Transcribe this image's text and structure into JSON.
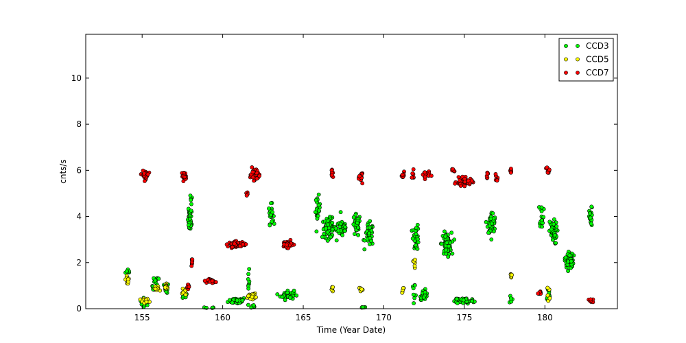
{
  "chart_data": {
    "type": "scatter",
    "title": "",
    "xlabel": "Time (Year Date)",
    "ylabel": "cnts/s",
    "xlim": [
      151.5,
      184.5
    ],
    "ylim": [
      0,
      11.9
    ],
    "xticks": [
      155,
      160,
      165,
      170,
      175,
      180
    ],
    "yticks": [
      0,
      2,
      4,
      6,
      8,
      10
    ],
    "grid": false,
    "legend_position": "top-right",
    "series": [
      {
        "name": "CCD3",
        "color": "#00ff00",
        "clusters": [
          {
            "x": 154.15,
            "y": 1.6,
            "xs": 0.15,
            "ys": 0.1,
            "n": 8
          },
          {
            "x": 155.15,
            "y": 0.3,
            "xs": 0.25,
            "ys": 0.12,
            "n": 22
          },
          {
            "x": 155.85,
            "y": 1.0,
            "xs": 0.18,
            "ys": 0.3,
            "n": 18
          },
          {
            "x": 156.5,
            "y": 0.9,
            "xs": 0.12,
            "ys": 0.15,
            "n": 12
          },
          {
            "x": 157.6,
            "y": 0.6,
            "xs": 0.15,
            "ys": 0.15,
            "n": 14
          },
          {
            "x": 157.95,
            "y": 3.8,
            "xs": 0.1,
            "ys": 0.35,
            "n": 30
          },
          {
            "x": 158.05,
            "y": 4.6,
            "xs": 0.06,
            "ys": 0.4,
            "n": 8
          },
          {
            "x": 159.2,
            "y": 0.03,
            "xs": 0.25,
            "ys": 0.03,
            "n": 14
          },
          {
            "x": 160.9,
            "y": 0.35,
            "xs": 0.45,
            "ys": 0.1,
            "n": 40
          },
          {
            "x": 161.6,
            "y": 1.2,
            "xs": 0.05,
            "ys": 0.5,
            "n": 8
          },
          {
            "x": 161.9,
            "y": 0.1,
            "xs": 0.15,
            "ys": 0.08,
            "n": 10
          },
          {
            "x": 163.0,
            "y": 4.1,
            "xs": 0.12,
            "ys": 0.3,
            "n": 22
          },
          {
            "x": 164.0,
            "y": 0.6,
            "xs": 0.35,
            "ys": 0.15,
            "n": 40
          },
          {
            "x": 165.9,
            "y": 4.3,
            "xs": 0.12,
            "ys": 0.4,
            "n": 20
          },
          {
            "x": 166.6,
            "y": 3.5,
            "xs": 0.35,
            "ys": 0.3,
            "n": 70
          },
          {
            "x": 167.4,
            "y": 3.5,
            "xs": 0.3,
            "ys": 0.3,
            "n": 40
          },
          {
            "x": 168.3,
            "y": 3.6,
            "xs": 0.2,
            "ys": 0.35,
            "n": 35
          },
          {
            "x": 169.1,
            "y": 3.2,
            "xs": 0.22,
            "ys": 0.35,
            "n": 40
          },
          {
            "x": 168.7,
            "y": 0.05,
            "xs": 0.1,
            "ys": 0.03,
            "n": 6
          },
          {
            "x": 172.0,
            "y": 3.1,
            "xs": 0.15,
            "ys": 0.4,
            "n": 30
          },
          {
            "x": 172.5,
            "y": 0.6,
            "xs": 0.2,
            "ys": 0.15,
            "n": 30
          },
          {
            "x": 171.9,
            "y": 0.8,
            "xs": 0.12,
            "ys": 0.2,
            "n": 8
          },
          {
            "x": 173.9,
            "y": 2.8,
            "xs": 0.25,
            "ys": 0.35,
            "n": 70
          },
          {
            "x": 175.0,
            "y": 0.35,
            "xs": 0.5,
            "ys": 0.1,
            "n": 55
          },
          {
            "x": 176.7,
            "y": 3.7,
            "xs": 0.2,
            "ys": 0.35,
            "n": 55
          },
          {
            "x": 177.9,
            "y": 0.4,
            "xs": 0.06,
            "ys": 0.15,
            "n": 6
          },
          {
            "x": 179.8,
            "y": 4.1,
            "xs": 0.1,
            "ys": 0.4,
            "n": 18
          },
          {
            "x": 180.2,
            "y": 0.6,
            "xs": 0.1,
            "ys": 0.3,
            "n": 14
          },
          {
            "x": 180.5,
            "y": 3.3,
            "xs": 0.2,
            "ys": 0.35,
            "n": 50
          },
          {
            "x": 181.5,
            "y": 2.1,
            "xs": 0.22,
            "ys": 0.3,
            "n": 45
          },
          {
            "x": 182.85,
            "y": 3.9,
            "xs": 0.08,
            "ys": 0.35,
            "n": 22
          }
        ]
      },
      {
        "name": "CCD5",
        "color": "#ffff00",
        "clusters": [
          {
            "x": 154.1,
            "y": 1.25,
            "xs": 0.1,
            "ys": 0.15,
            "n": 12
          },
          {
            "x": 155.2,
            "y": 0.3,
            "xs": 0.25,
            "ys": 0.1,
            "n": 14
          },
          {
            "x": 155.9,
            "y": 0.85,
            "xs": 0.15,
            "ys": 0.1,
            "n": 12
          },
          {
            "x": 156.5,
            "y": 1.0,
            "xs": 0.12,
            "ys": 0.12,
            "n": 12
          },
          {
            "x": 157.6,
            "y": 0.75,
            "xs": 0.12,
            "ys": 0.15,
            "n": 8
          },
          {
            "x": 161.8,
            "y": 0.55,
            "xs": 0.2,
            "ys": 0.08,
            "n": 18
          },
          {
            "x": 166.8,
            "y": 0.85,
            "xs": 0.06,
            "ys": 0.12,
            "n": 6
          },
          {
            "x": 168.6,
            "y": 0.85,
            "xs": 0.1,
            "ys": 0.06,
            "n": 8
          },
          {
            "x": 171.2,
            "y": 0.8,
            "xs": 0.06,
            "ys": 0.08,
            "n": 5
          },
          {
            "x": 171.9,
            "y": 2.0,
            "xs": 0.06,
            "ys": 0.2,
            "n": 6
          },
          {
            "x": 177.9,
            "y": 1.45,
            "xs": 0.05,
            "ys": 0.08,
            "n": 6
          },
          {
            "x": 180.2,
            "y": 0.6,
            "xs": 0.08,
            "ys": 0.2,
            "n": 5
          }
        ]
      },
      {
        "name": "CCD7",
        "color": "#ff0000",
        "clusters": [
          {
            "x": 155.2,
            "y": 5.8,
            "xs": 0.15,
            "ys": 0.12,
            "n": 45
          },
          {
            "x": 157.6,
            "y": 5.75,
            "xs": 0.12,
            "ys": 0.12,
            "n": 22
          },
          {
            "x": 157.9,
            "y": 0.95,
            "xs": 0.08,
            "ys": 0.1,
            "n": 10
          },
          {
            "x": 158.1,
            "y": 2.05,
            "xs": 0.04,
            "ys": 0.1,
            "n": 8
          },
          {
            "x": 159.3,
            "y": 1.2,
            "xs": 0.18,
            "ys": 0.06,
            "n": 30
          },
          {
            "x": 160.9,
            "y": 2.8,
            "xs": 0.45,
            "ys": 0.08,
            "n": 70
          },
          {
            "x": 161.5,
            "y": 4.95,
            "xs": 0.04,
            "ys": 0.1,
            "n": 6
          },
          {
            "x": 161.95,
            "y": 5.85,
            "xs": 0.2,
            "ys": 0.18,
            "n": 45
          },
          {
            "x": 164.0,
            "y": 2.8,
            "xs": 0.3,
            "ys": 0.1,
            "n": 45
          },
          {
            "x": 166.8,
            "y": 5.8,
            "xs": 0.05,
            "ys": 0.12,
            "n": 8
          },
          {
            "x": 168.6,
            "y": 5.7,
            "xs": 0.1,
            "ys": 0.15,
            "n": 18
          },
          {
            "x": 171.2,
            "y": 5.75,
            "xs": 0.06,
            "ys": 0.12,
            "n": 12
          },
          {
            "x": 171.8,
            "y": 5.8,
            "xs": 0.08,
            "ys": 0.12,
            "n": 8
          },
          {
            "x": 172.6,
            "y": 5.8,
            "xs": 0.2,
            "ys": 0.12,
            "n": 25
          },
          {
            "x": 174.3,
            "y": 6.0,
            "xs": 0.08,
            "ys": 0.08,
            "n": 5
          },
          {
            "x": 175.0,
            "y": 5.5,
            "xs": 0.4,
            "ys": 0.12,
            "n": 60
          },
          {
            "x": 176.4,
            "y": 5.8,
            "xs": 0.05,
            "ys": 0.1,
            "n": 6
          },
          {
            "x": 177.0,
            "y": 5.6,
            "xs": 0.08,
            "ys": 0.2,
            "n": 6
          },
          {
            "x": 177.9,
            "y": 6.0,
            "xs": 0.06,
            "ys": 0.1,
            "n": 10
          },
          {
            "x": 179.7,
            "y": 0.7,
            "xs": 0.08,
            "ys": 0.05,
            "n": 8
          },
          {
            "x": 180.2,
            "y": 6.0,
            "xs": 0.07,
            "ys": 0.1,
            "n": 10
          },
          {
            "x": 182.85,
            "y": 0.35,
            "xs": 0.12,
            "ys": 0.05,
            "n": 12
          }
        ]
      }
    ]
  }
}
